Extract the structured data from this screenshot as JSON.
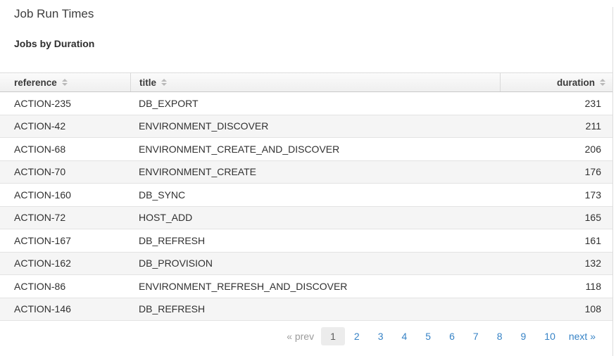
{
  "page": {
    "title": "Job Run Times",
    "subtitle": "Jobs by Duration"
  },
  "table": {
    "columns": [
      {
        "key": "reference",
        "label": "reference",
        "sortable": true
      },
      {
        "key": "title",
        "label": "title",
        "sortable": true
      },
      {
        "key": "duration",
        "label": "duration",
        "sortable": true
      }
    ],
    "rows": [
      {
        "reference": "ACTION-235",
        "title": "DB_EXPORT",
        "duration": "231"
      },
      {
        "reference": "ACTION-42",
        "title": "ENVIRONMENT_DISCOVER",
        "duration": "211"
      },
      {
        "reference": "ACTION-68",
        "title": "ENVIRONMENT_CREATE_AND_DISCOVER",
        "duration": "206"
      },
      {
        "reference": "ACTION-70",
        "title": "ENVIRONMENT_CREATE",
        "duration": "176"
      },
      {
        "reference": "ACTION-160",
        "title": "DB_SYNC",
        "duration": "173"
      },
      {
        "reference": "ACTION-72",
        "title": "HOST_ADD",
        "duration": "165"
      },
      {
        "reference": "ACTION-167",
        "title": "DB_REFRESH",
        "duration": "161"
      },
      {
        "reference": "ACTION-162",
        "title": "DB_PROVISION",
        "duration": "132"
      },
      {
        "reference": "ACTION-86",
        "title": "ENVIRONMENT_REFRESH_AND_DISCOVER",
        "duration": "118"
      },
      {
        "reference": "ACTION-146",
        "title": "DB_REFRESH",
        "duration": "108"
      }
    ]
  },
  "pagination": {
    "prev_label": "« prev",
    "next_label": "next »",
    "pages": [
      "1",
      "2",
      "3",
      "4",
      "5",
      "6",
      "7",
      "8",
      "9",
      "10"
    ],
    "current": "1"
  },
  "colors": {
    "link_blue": "#3783c6",
    "header_bg": "#f1f1f1",
    "stripe_bg": "#f5f5f5",
    "border": "#dcdcdc",
    "text": "#303030",
    "muted_gray": "#9b9b9b",
    "active_page_bg": "#ececec"
  }
}
